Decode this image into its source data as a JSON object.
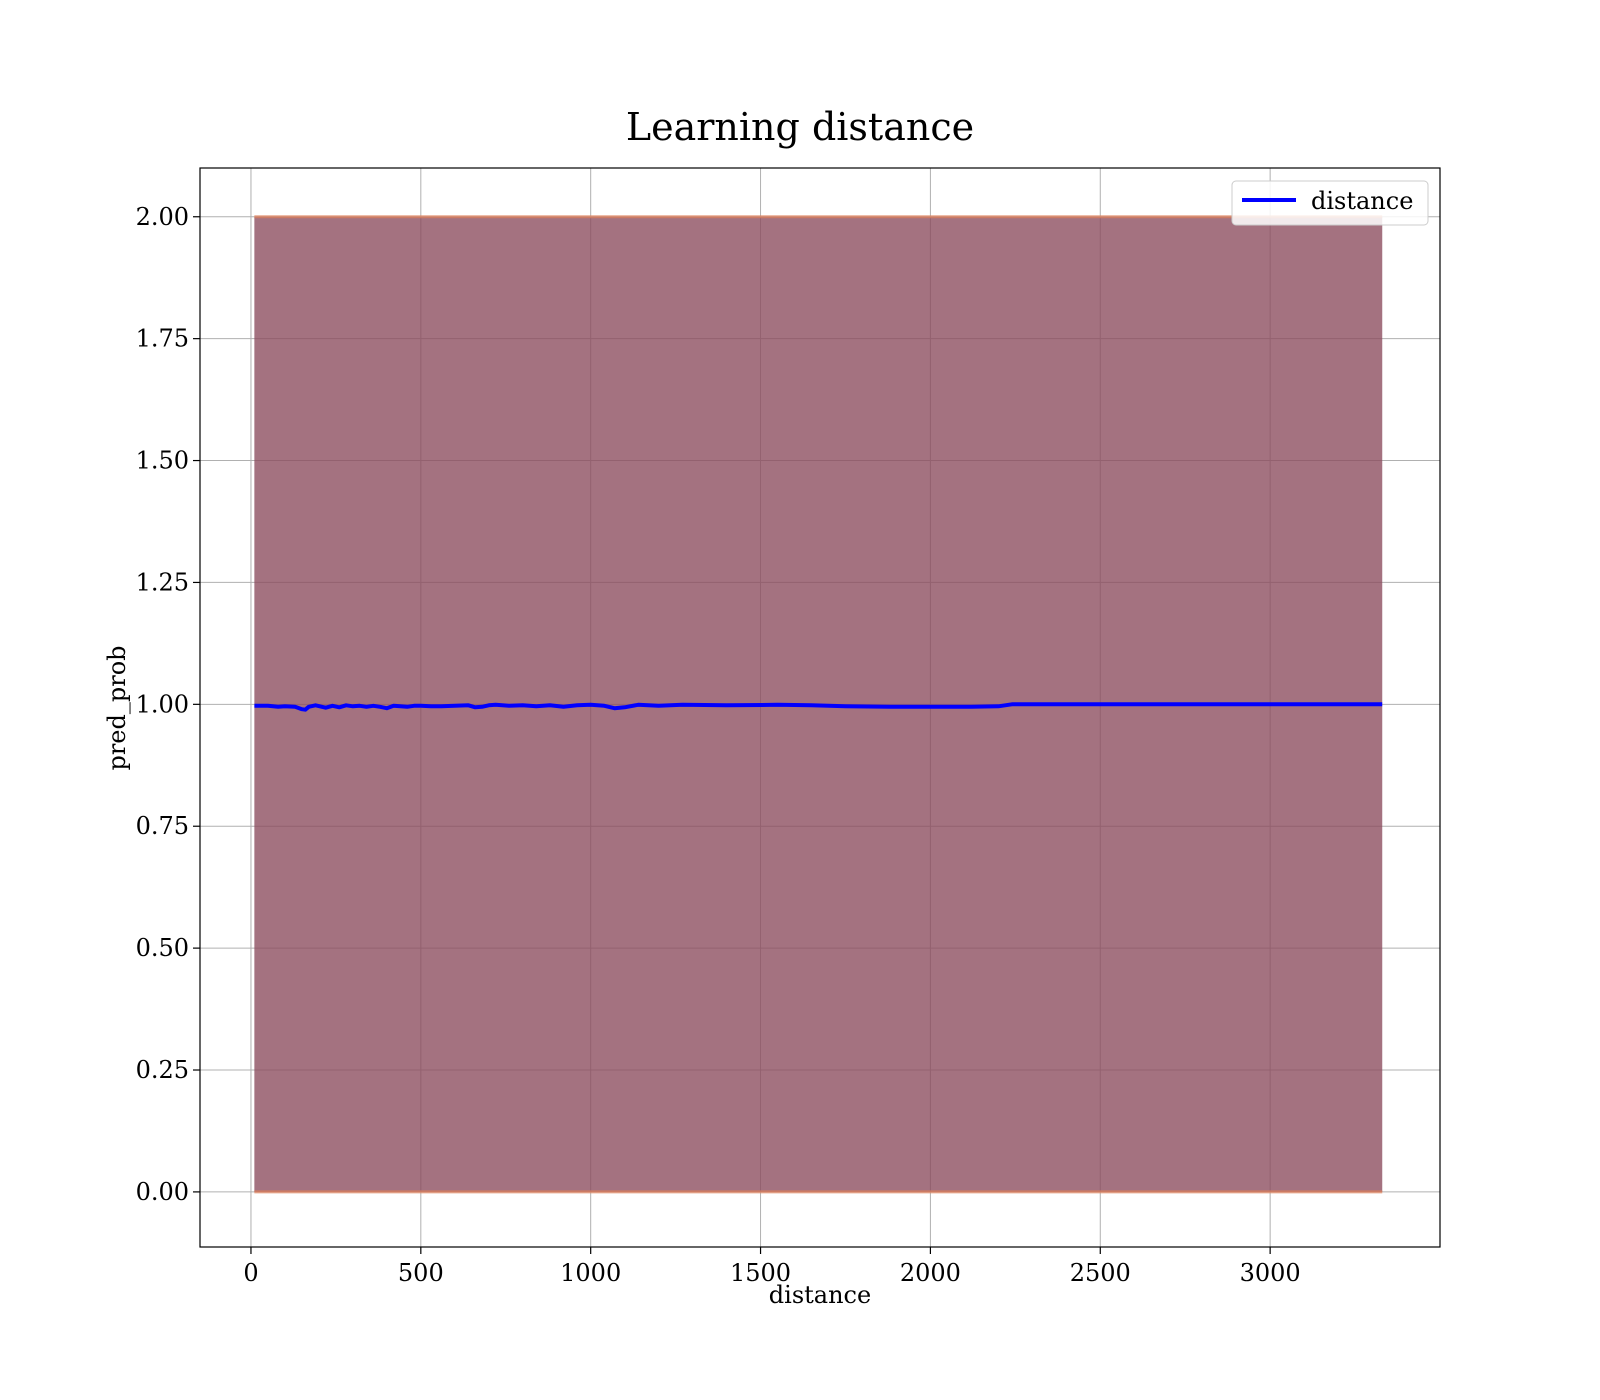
{
  "chart_data": {
    "type": "line",
    "title": "Learning distance",
    "xlabel": "distance",
    "ylabel": "pred_prob",
    "xlim": [
      -150,
      3500
    ],
    "ylim": [
      -0.113,
      2.1
    ],
    "xticks": [
      0,
      500,
      1000,
      1500,
      2000,
      2500,
      3000
    ],
    "xtick_labels": [
      "0",
      "500",
      "1000",
      "1500",
      "2000",
      "2500",
      "3000"
    ],
    "yticks": [
      0.0,
      0.25,
      0.5,
      0.75,
      1.0,
      1.25,
      1.5,
      1.75,
      2.0
    ],
    "ytick_labels": [
      "0.00",
      "0.25",
      "0.50",
      "0.75",
      "1.00",
      "1.25",
      "1.50",
      "1.75",
      "2.00"
    ],
    "grid": true,
    "legend_position": "upper right",
    "colors": {
      "line": "#0000ff",
      "band_fill": "#8b4a5c",
      "band_edge": "#e0805a",
      "grid": "#b0b0b0"
    },
    "series": [
      {
        "name": "distance",
        "x": [
          10,
          50,
          80,
          100,
          130,
          150,
          160,
          170,
          190,
          220,
          240,
          260,
          280,
          300,
          320,
          340,
          360,
          380,
          400,
          420,
          440,
          460,
          480,
          500,
          530,
          560,
          600,
          640,
          660,
          680,
          700,
          720,
          760,
          800,
          840,
          880,
          920,
          960,
          1000,
          1040,
          1070,
          1100,
          1140,
          1200,
          1270,
          1400,
          1550,
          1650,
          1750,
          1900,
          2000,
          2120,
          2200,
          2240,
          2500,
          3000,
          3330
        ],
        "y": [
          0.997,
          0.997,
          0.995,
          0.996,
          0.995,
          0.99,
          0.989,
          0.995,
          0.998,
          0.993,
          0.997,
          0.994,
          0.998,
          0.996,
          0.997,
          0.995,
          0.997,
          0.995,
          0.992,
          0.997,
          0.996,
          0.995,
          0.997,
          0.997,
          0.996,
          0.996,
          0.997,
          0.998,
          0.994,
          0.995,
          0.998,
          0.999,
          0.997,
          0.998,
          0.996,
          0.998,
          0.995,
          0.998,
          0.999,
          0.997,
          0.992,
          0.994,
          0.999,
          0.997,
          0.999,
          0.998,
          0.999,
          0.998,
          0.996,
          0.995,
          0.995,
          0.995,
          0.996,
          1.0,
          1.0,
          1.0,
          1.0
        ]
      }
    ],
    "band": {
      "x": [
        10,
        3330
      ],
      "upper": [
        2.0,
        2.0
      ],
      "lower": [
        0.0,
        0.0
      ]
    }
  }
}
